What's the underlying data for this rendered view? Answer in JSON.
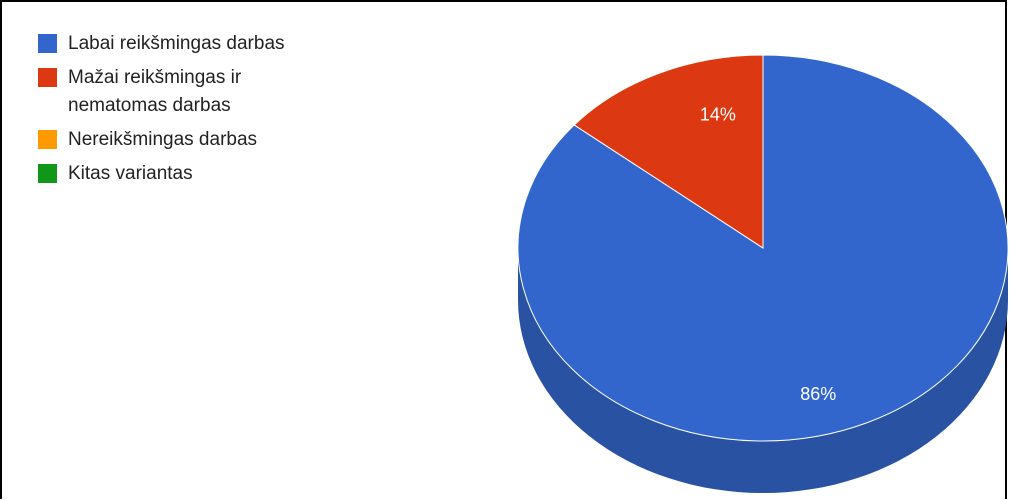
{
  "chart_data": {
    "type": "pie",
    "title": "",
    "legend_position": "top-left",
    "style": "3d",
    "slices": [
      {
        "name": "Labai reikšmingas darbas",
        "value": 86,
        "label": "86%",
        "color": "#3366cc",
        "side_color": "#2a52a3"
      },
      {
        "name": "Mažai reikšmingas ir nematomas darbas",
        "value": 14,
        "label": "14%",
        "color": "#dc3912",
        "side_color": "#b02e0e"
      },
      {
        "name": "Nereikšmingas darbas",
        "value": 0,
        "label": "",
        "color": "#ff9900",
        "side_color": "#cc7a00"
      },
      {
        "name": "Kitas variantas",
        "value": 0,
        "label": "",
        "color": "#109618",
        "side_color": "#0c7813"
      }
    ]
  },
  "legend": {
    "items": [
      {
        "lines": [
          "Labai reikšmingas darbas"
        ],
        "color": "#3366cc"
      },
      {
        "lines": [
          "Mažai reikšmingas ir",
          "nematomas darbas"
        ],
        "color": "#dc3912"
      },
      {
        "lines": [
          "Nereikšmingas darbas"
        ],
        "color": "#ff9900"
      },
      {
        "lines": [
          "Kitas variantas"
        ],
        "color": "#109618"
      }
    ]
  }
}
